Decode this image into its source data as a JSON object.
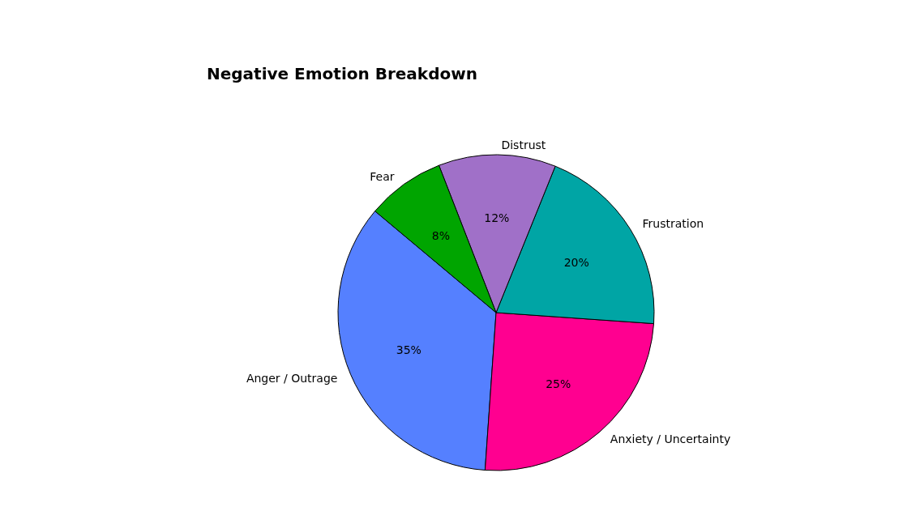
{
  "chart_data": {
    "type": "pie",
    "title": "Negative Emotion Breakdown",
    "categories": [
      "Anger / Outrage",
      "Anxiety / Uncertainty",
      "Frustration",
      "Distrust",
      "Fear"
    ],
    "values": [
      35,
      25,
      20,
      12,
      8
    ],
    "colors": [
      "#5580ff",
      "#ff0090",
      "#00a5a5",
      "#a070c8",
      "#00a500"
    ],
    "value_labels": [
      "35%",
      "25%",
      "20%",
      "12%",
      "8%"
    ],
    "legend": false
  }
}
